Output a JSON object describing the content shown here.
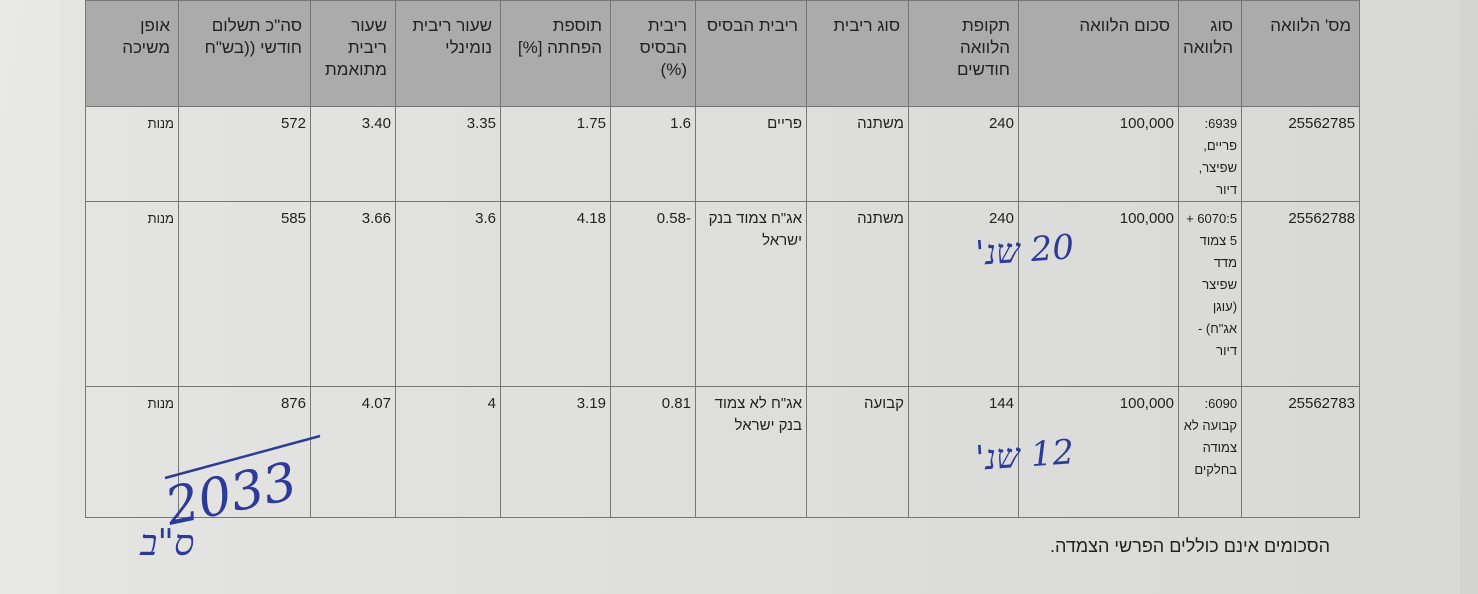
{
  "table": {
    "headers": [
      "מס' הלוואה",
      "סוג הלוואה",
      "סכום הלוואה",
      "תקופת הלוואה חודשים",
      "סוג ריבית",
      "ריבית הבסיס",
      "ריבית הבסיס (%)",
      "תוספת הפחתה [%]",
      "שעור ריבית נומינלי",
      "שעור ריבית מתואמת",
      "סה\"כ תשלום חודשי ((בש\"ח",
      "אופן משיכה"
    ],
    "rows": [
      [
        "25562785",
        "6939: פריים, שפיצר, דיור",
        "100,000",
        "240",
        "משתנה",
        "פריים",
        "1.6",
        "1.75",
        "3.35",
        "3.40",
        "572",
        "מנות"
      ],
      [
        "25562788",
        "6070:5 + 5 צמוד מדד שפיצר (עוגן אג\"ח) - דיור",
        "100,000",
        "240",
        "משתנה",
        "אג\"ח צמוד בנק ישראל",
        "-0.58",
        "4.18",
        "3.6",
        "3.66",
        "585",
        "מנות"
      ],
      [
        "25562783",
        "6090: קבועה לא צמודה בחלקים",
        "100,000",
        "144",
        "קבועה",
        "אג\"ח לא צמוד בנק ישראל",
        "0.81",
        "3.19",
        "4",
        "4.07",
        "876",
        "מנות"
      ]
    ]
  },
  "footer_note": "הסכומים אינם כוללים הפרשי הצמדה.",
  "handwriting": {
    "color": "#2c3a9a",
    "row2_term": "20 שנ'",
    "row3_term": "12 שנ'",
    "end_year": "2033",
    "initials": "ס\"ב"
  }
}
